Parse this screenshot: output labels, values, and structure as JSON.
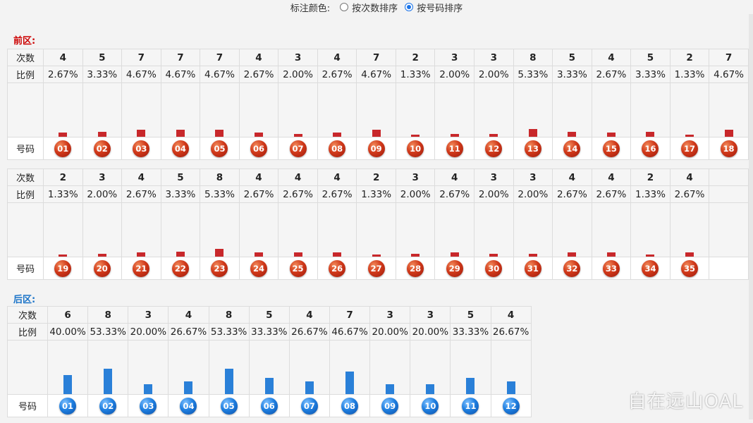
{
  "topbar": {
    "label": "标注颜色:",
    "options": [
      {
        "label": "按次数排序",
        "checked": false
      },
      {
        "label": "按号码排序",
        "checked": true
      }
    ]
  },
  "front": {
    "title": "前区:",
    "title_color": "#cc0000",
    "row_labels": {
      "count": "次数",
      "ratio": "比例",
      "number": "号码"
    },
    "bar_color": "#c8282b",
    "rows": [
      {
        "numbers": [
          "01",
          "02",
          "03",
          "04",
          "05",
          "06",
          "07",
          "08",
          "09",
          "10",
          "11",
          "12",
          "13",
          "14",
          "15",
          "16",
          "17",
          "18"
        ],
        "counts": [
          4,
          5,
          7,
          7,
          7,
          4,
          3,
          4,
          7,
          2,
          3,
          3,
          8,
          5,
          4,
          5,
          2,
          7
        ],
        "ratios": [
          "2.67%",
          "3.33%",
          "4.67%",
          "4.67%",
          "4.67%",
          "2.67%",
          "2.00%",
          "2.67%",
          "4.67%",
          "1.33%",
          "2.00%",
          "2.00%",
          "5.33%",
          "3.33%",
          "2.67%",
          "3.33%",
          "1.33%",
          "4.67%"
        ]
      },
      {
        "numbers": [
          "19",
          "20",
          "21",
          "22",
          "23",
          "24",
          "25",
          "26",
          "27",
          "28",
          "29",
          "30",
          "31",
          "32",
          "33",
          "34",
          "35"
        ],
        "counts": [
          2,
          3,
          4,
          5,
          8,
          4,
          4,
          4,
          2,
          3,
          4,
          3,
          3,
          4,
          4,
          2,
          4
        ],
        "ratios": [
          "1.33%",
          "2.00%",
          "2.67%",
          "3.33%",
          "5.33%",
          "2.67%",
          "2.67%",
          "2.67%",
          "1.33%",
          "2.00%",
          "2.67%",
          "2.00%",
          "2.00%",
          "2.67%",
          "2.67%",
          "1.33%",
          "2.67%"
        ]
      }
    ]
  },
  "back": {
    "title": "后区:",
    "title_color": "#1a73c8",
    "row_labels": {
      "count": "次数",
      "ratio": "比例",
      "number": "号码"
    },
    "bar_color": "#2a80d8",
    "numbers": [
      "01",
      "02",
      "03",
      "04",
      "05",
      "06",
      "07",
      "08",
      "09",
      "10",
      "11",
      "12"
    ],
    "counts": [
      6,
      8,
      3,
      4,
      8,
      5,
      4,
      7,
      3,
      3,
      5,
      4
    ],
    "ratios": [
      "40.00%",
      "53.33%",
      "20.00%",
      "26.67%",
      "53.33%",
      "33.33%",
      "26.67%",
      "46.67%",
      "20.00%",
      "20.00%",
      "33.33%",
      "26.67%"
    ]
  },
  "watermark": "自在远山OAL"
}
